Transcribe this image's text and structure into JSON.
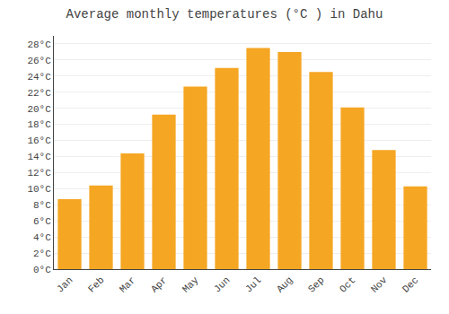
{
  "chart_data": {
    "type": "bar",
    "title": "Average monthly temperatures (°C ) in Dahu",
    "categories": [
      "Jan",
      "Feb",
      "Mar",
      "Apr",
      "May",
      "Jun",
      "Jul",
      "Aug",
      "Sep",
      "Oct",
      "Nov",
      "Dec"
    ],
    "values": [
      8.7,
      10.4,
      14.4,
      19.2,
      22.7,
      25.0,
      27.5,
      27.0,
      24.5,
      20.1,
      14.8,
      10.3
    ],
    "color": "#F5A623",
    "ylim": [
      0,
      29
    ],
    "yticks": [
      {
        "value": 0,
        "label": "0°C"
      },
      {
        "value": 2,
        "label": "2°C"
      },
      {
        "value": 4,
        "label": "4°C"
      },
      {
        "value": 6,
        "label": "6°C"
      },
      {
        "value": 8,
        "label": "8°C"
      },
      {
        "value": 10,
        "label": "10°C"
      },
      {
        "value": 12,
        "label": "12°C"
      },
      {
        "value": 14,
        "label": "14°C"
      },
      {
        "value": 16,
        "label": "16°C"
      },
      {
        "value": 18,
        "label": "18°C"
      },
      {
        "value": 20,
        "label": "20°C"
      },
      {
        "value": 22,
        "label": "22°C"
      },
      {
        "value": 24,
        "label": "24°C"
      },
      {
        "value": 26,
        "label": "26°C"
      },
      {
        "value": 28,
        "label": "28°C"
      }
    ],
    "grid": true
  }
}
